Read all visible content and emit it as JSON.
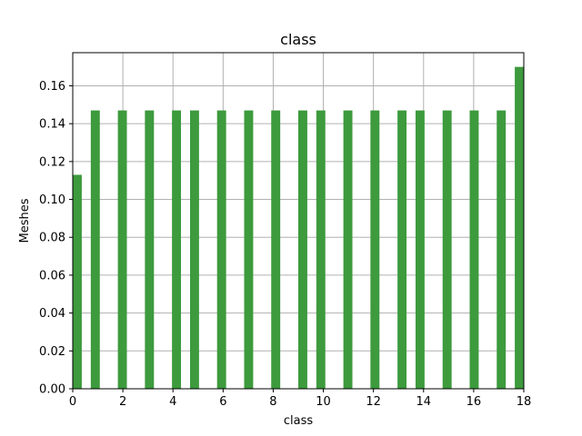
{
  "chart_data": {
    "type": "bar",
    "title": "class",
    "xlabel": "class",
    "ylabel": "Meshes",
    "xlim": [
      0,
      18
    ],
    "ylim": [
      0,
      0.1775
    ],
    "grid": true,
    "bar_color": "#3d9a3d",
    "grid_color": "#b0b0b0",
    "x_ticks": [
      "0",
      "2",
      "4",
      "6",
      "8",
      "10",
      "12",
      "14",
      "16",
      "18"
    ],
    "y_ticks": [
      "0.00",
      "0.02",
      "0.04",
      "0.06",
      "0.08",
      "0.10",
      "0.12",
      "0.14",
      "0.16"
    ],
    "bars": [
      {
        "x0": 0.0,
        "x1": 0.36,
        "value": 0.113
      },
      {
        "x0": 0.72,
        "x1": 1.08,
        "value": 0.147
      },
      {
        "x0": 1.8,
        "x1": 2.16,
        "value": 0.147
      },
      {
        "x0": 2.88,
        "x1": 3.24,
        "value": 0.147
      },
      {
        "x0": 3.96,
        "x1": 4.32,
        "value": 0.147
      },
      {
        "x0": 4.68,
        "x1": 5.04,
        "value": 0.147
      },
      {
        "x0": 5.76,
        "x1": 6.12,
        "value": 0.147
      },
      {
        "x0": 6.84,
        "x1": 7.2,
        "value": 0.147
      },
      {
        "x0": 7.92,
        "x1": 8.28,
        "value": 0.147
      },
      {
        "x0": 9.0,
        "x1": 9.36,
        "value": 0.147
      },
      {
        "x0": 9.72,
        "x1": 10.08,
        "value": 0.147
      },
      {
        "x0": 10.8,
        "x1": 11.16,
        "value": 0.147
      },
      {
        "x0": 11.88,
        "x1": 12.24,
        "value": 0.147
      },
      {
        "x0": 12.96,
        "x1": 13.32,
        "value": 0.147
      },
      {
        "x0": 13.68,
        "x1": 14.04,
        "value": 0.147
      },
      {
        "x0": 14.76,
        "x1": 15.12,
        "value": 0.147
      },
      {
        "x0": 15.84,
        "x1": 16.2,
        "value": 0.147
      },
      {
        "x0": 16.92,
        "x1": 17.28,
        "value": 0.147
      },
      {
        "x0": 17.64,
        "x1": 18.0,
        "value": 0.17
      }
    ]
  }
}
